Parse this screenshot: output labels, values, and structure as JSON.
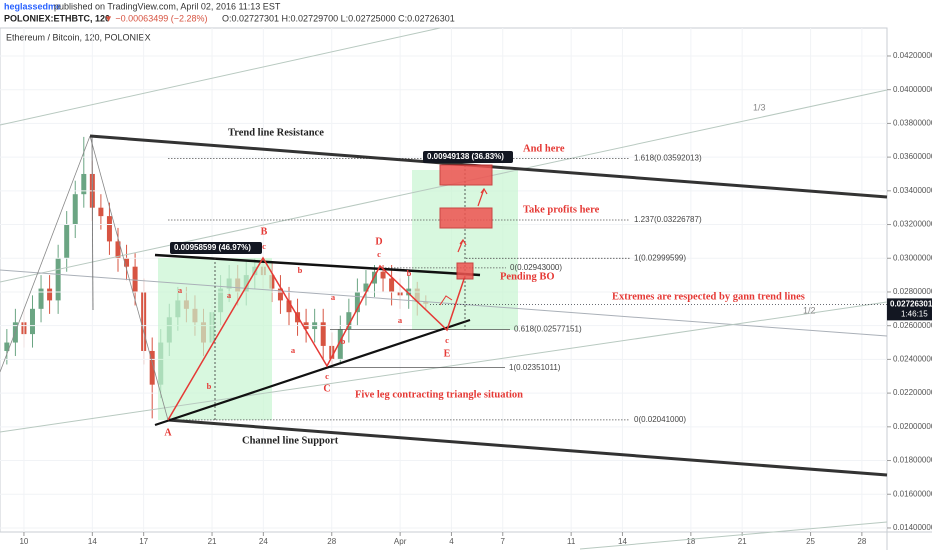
{
  "header": {
    "author": "heglassedme",
    "published": "published on TradingView.com, April 02, 2016 11:13 EST",
    "symbol": "POLONIEX:ETHBTC, 120",
    "change": "▼ −0.00063499 (−2.28%)",
    "ohlc": "O:0.02727301 H:0.02729700 L:0.02725000 C:0.02726301"
  },
  "chart_data": {
    "type": "candlestick",
    "title": "Ethereum / Bitcoin, 120, POLONIEX",
    "grid": true,
    "up_color": "#6ba583",
    "down_color": "#d75442",
    "x": [
      9.0,
      9.5,
      10.0,
      10.5,
      11.0,
      11.5,
      12.0,
      12.5,
      13.0,
      13.5,
      14.0,
      14.5,
      15.0,
      15.5,
      16.0,
      16.5,
      17.0,
      17.5,
      18.0,
      18.5,
      19.0,
      19.5,
      20.0,
      20.5,
      21.0,
      21.5,
      22.0,
      22.5,
      23.0,
      23.5,
      24.0,
      24.5,
      25.0,
      25.5,
      26.0,
      26.5,
      27.0,
      27.5,
      28.0,
      28.5,
      29.0,
      29.5,
      30.0,
      30.5,
      31.0,
      31.5,
      32.0,
      32.5,
      33.0,
      33.5
    ],
    "open": [
      0.0245,
      0.025,
      0.0262,
      0.0255,
      0.027,
      0.0282,
      0.0275,
      0.03,
      0.032,
      0.0338,
      0.035,
      0.033,
      0.0325,
      0.031,
      0.03,
      0.0295,
      0.028,
      0.0245,
      0.0225,
      0.025,
      0.0265,
      0.0275,
      0.027,
      0.0262,
      0.025,
      0.0268,
      0.0282,
      0.0288,
      0.028,
      0.029,
      0.0295,
      0.029,
      0.0282,
      0.0275,
      0.0268,
      0.0262,
      0.0258,
      0.0262,
      0.0248,
      0.024,
      0.0258,
      0.0268,
      0.028,
      0.0285,
      0.0292,
      0.0288,
      0.028,
      0.0278,
      0.0282,
      0.0274
    ],
    "high": [
      0.0258,
      0.027,
      0.027,
      0.0278,
      0.029,
      0.029,
      0.0308,
      0.0328,
      0.0346,
      0.0372,
      0.0358,
      0.0338,
      0.0333,
      0.0318,
      0.0308,
      0.0303,
      0.0288,
      0.0253,
      0.0258,
      0.0273,
      0.0283,
      0.0283,
      0.0278,
      0.027,
      0.0276,
      0.029,
      0.0296,
      0.0296,
      0.0298,
      0.03,
      0.03,
      0.0298,
      0.029,
      0.0283,
      0.0276,
      0.027,
      0.027,
      0.027,
      0.0256,
      0.0266,
      0.0276,
      0.0288,
      0.0293,
      0.0296,
      0.0296,
      0.0296,
      0.0288,
      0.029,
      0.0286,
      0.0278
    ],
    "low": [
      0.0237,
      0.0242,
      0.0247,
      0.0247,
      0.0262,
      0.0267,
      0.0267,
      0.0292,
      0.0312,
      0.033,
      0.0322,
      0.0317,
      0.0302,
      0.0292,
      0.0287,
      0.0272,
      0.0237,
      0.0205,
      0.0217,
      0.0242,
      0.0257,
      0.0262,
      0.0254,
      0.0242,
      0.0242,
      0.026,
      0.0274,
      0.0272,
      0.0272,
      0.0282,
      0.0282,
      0.0274,
      0.0267,
      0.026,
      0.0254,
      0.025,
      0.025,
      0.024,
      0.0237,
      0.0237,
      0.025,
      0.026,
      0.0272,
      0.0277,
      0.028,
      0.0272,
      0.027,
      0.027,
      0.0266,
      0.027
    ],
    "close": [
      0.025,
      0.0262,
      0.0255,
      0.027,
      0.0282,
      0.0275,
      0.03,
      0.032,
      0.0338,
      0.035,
      0.033,
      0.0325,
      0.031,
      0.03,
      0.0295,
      0.028,
      0.0245,
      0.0225,
      0.025,
      0.0265,
      0.0275,
      0.027,
      0.0262,
      0.025,
      0.0268,
      0.0282,
      0.0288,
      0.028,
      0.029,
      0.0295,
      0.029,
      0.0282,
      0.0275,
      0.0268,
      0.0262,
      0.0258,
      0.0262,
      0.0248,
      0.024,
      0.0258,
      0.0268,
      0.028,
      0.0285,
      0.0292,
      0.0288,
      0.028,
      0.0278,
      0.0282,
      0.0274,
      0.0273
    ],
    "xlim": [
      8.6,
      60.47
    ],
    "xticks": [
      {
        "value": 10,
        "label": "10"
      },
      {
        "value": 14,
        "label": "14"
      },
      {
        "value": 17,
        "label": "17"
      },
      {
        "value": 21,
        "label": "21"
      },
      {
        "value": 24,
        "label": "24"
      },
      {
        "value": 28,
        "label": "28"
      },
      {
        "value": 32,
        "label": "Apr"
      },
      {
        "value": 35,
        "label": "4"
      },
      {
        "value": 38,
        "label": "7"
      },
      {
        "value": 42,
        "label": "11"
      },
      {
        "value": 45,
        "label": "14"
      },
      {
        "value": 49,
        "label": "18"
      },
      {
        "value": 52,
        "label": "21"
      },
      {
        "value": 56,
        "label": "25"
      },
      {
        "value": 59,
        "label": "28"
      }
    ],
    "ylim": [
      0.01376,
      0.04366
    ],
    "yticks": [
      {
        "value": 0.014,
        "label": "0.01400000"
      },
      {
        "value": 0.016,
        "label": "0.01600000"
      },
      {
        "value": 0.018,
        "label": "0.01800000"
      },
      {
        "value": 0.02,
        "label": "0.02000000"
      },
      {
        "value": 0.022,
        "label": "0.02200000"
      },
      {
        "value": 0.024,
        "label": "0.02400000"
      },
      {
        "value": 0.026,
        "label": "0.02600000"
      },
      {
        "value": 0.028,
        "label": "0.02800000"
      },
      {
        "value": 0.03,
        "label": "0.03000000"
      },
      {
        "value": 0.032,
        "label": "0.03200000"
      },
      {
        "value": 0.034,
        "label": "0.03400000"
      },
      {
        "value": 0.036,
        "label": "0.03600000"
      },
      {
        "value": 0.038,
        "label": "0.03800000"
      },
      {
        "value": 0.04,
        "label": "0.04000000"
      },
      {
        "value": 0.042,
        "label": "0.04200000"
      }
    ],
    "last_price": {
      "value": 0.02726301,
      "label": "0.02726301"
    },
    "countdown": "1:46:15",
    "fib_levels": [
      {
        "value": 0.03592013,
        "label": "1.618(0.03592013)"
      },
      {
        "value": 0.03226787,
        "label": "1.237(0.03226787)"
      },
      {
        "value": 0.02999599,
        "label": "1(0.02999599)"
      },
      {
        "value": 0.02943,
        "label": "0(0.02943000)"
      },
      {
        "value": 0.02577151,
        "label": "0.618(0.02577151)"
      },
      {
        "value": 0.02351011,
        "label": "1(0.02351011)"
      },
      {
        "value": 0.02041,
        "label": "0(0.02041000)"
      }
    ],
    "annotations": {
      "resistance": "Trend line Resistance",
      "support": "Channel line Support",
      "and_here": "And here",
      "take_profits": "Take profits here",
      "pending": "Pending BO",
      "extremes": "Extremes are respected by gann trend lines",
      "triangle": "Five leg contracting triangle situation",
      "third": "1/3",
      "half": "1/2",
      "measure_1": "0.00958599 (46.97%)",
      "measure_2": "0.00949138 (36.83%)",
      "wave_labels": [
        "A",
        "a",
        "b",
        "B",
        "c",
        "a",
        "b",
        "a",
        "b",
        "a",
        "c",
        "C",
        "D",
        "c",
        "b",
        "a",
        "c",
        "E"
      ]
    }
  }
}
